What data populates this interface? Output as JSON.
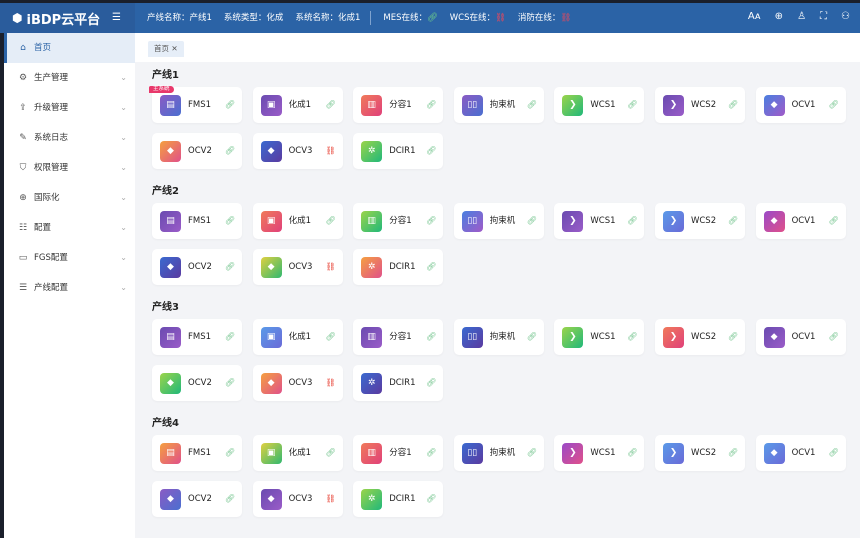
{
  "header": {
    "logo": "iBDP云平台",
    "line_name": "产线名称：产线1",
    "sys_type": "系统类型：化成",
    "sys_name": "系统名称：化成1",
    "mes": "MES在线：",
    "wcs": "WCS在线：",
    "fire": "消防在线：",
    "mes_ok": true,
    "wcs_ok": false,
    "fire_ok": false
  },
  "sidebar": {
    "items": [
      {
        "label": "首页",
        "icon": "home-icon",
        "active": true
      },
      {
        "label": "生产管理",
        "icon": "production-icon"
      },
      {
        "label": "升级管理",
        "icon": "upgrade-icon"
      },
      {
        "label": "系统日志",
        "icon": "log-icon"
      },
      {
        "label": "权限管理",
        "icon": "shield-icon"
      },
      {
        "label": "国际化",
        "icon": "globe-icon"
      },
      {
        "label": "配置",
        "icon": "config-icon"
      },
      {
        "label": "FGS配置",
        "icon": "monitor-icon"
      },
      {
        "label": "产线配置",
        "icon": "list-icon"
      }
    ]
  },
  "tabs": [
    {
      "label": "首页"
    }
  ],
  "main_badge": "主系统",
  "colors": {
    "accent": "#2b63a6",
    "online": "#6fc28a",
    "offline": "#e8463a"
  },
  "lines": [
    {
      "title": "产线1",
      "cards": [
        [
          "FMS1",
          "pb",
          1
        ],
        [
          "化成1",
          "pu",
          1
        ],
        [
          "分容1",
          "pr",
          1
        ],
        [
          "拘束机",
          "pb",
          1
        ],
        [
          "WCS1",
          "gr",
          1
        ],
        [
          "WCS2",
          "pu",
          1
        ],
        [
          "OCV1",
          "bp",
          1
        ],
        [
          "OCV2",
          "op",
          1
        ],
        [
          "OCV3",
          "bi",
          0
        ],
        [
          "DCIR1",
          "gr",
          1
        ]
      ]
    },
    {
      "title": "产线2",
      "cards": [
        [
          "FMS1",
          "pu",
          1
        ],
        [
          "化成1",
          "pr",
          1
        ],
        [
          "分容1",
          "gr",
          1
        ],
        [
          "拘束机",
          "bp",
          1
        ],
        [
          "WCS1",
          "pu",
          1
        ],
        [
          "WCS2",
          "bl",
          1
        ],
        [
          "OCV1",
          "pp",
          1
        ],
        [
          "OCV2",
          "bi",
          1
        ],
        [
          "OCV3",
          "gy",
          0
        ],
        [
          "DCIR1",
          "op",
          1
        ]
      ]
    },
    {
      "title": "产线3",
      "cards": [
        [
          "FMS1",
          "pu",
          1
        ],
        [
          "化成1",
          "bl",
          1
        ],
        [
          "分容1",
          "pu",
          1
        ],
        [
          "拘束机",
          "bi",
          1
        ],
        [
          "WCS1",
          "gr",
          1
        ],
        [
          "WCS2",
          "pr",
          1
        ],
        [
          "OCV1",
          "pu",
          1
        ],
        [
          "OCV2",
          "gr",
          1
        ],
        [
          "OCV3",
          "op",
          0
        ],
        [
          "DCIR1",
          "bi",
          1
        ]
      ]
    },
    {
      "title": "产线4",
      "cards": [
        [
          "FMS1",
          "op",
          1
        ],
        [
          "化成1",
          "gy",
          1
        ],
        [
          "分容1",
          "pr",
          1
        ],
        [
          "拘束机",
          "bi",
          1
        ],
        [
          "WCS1",
          "pp",
          1
        ],
        [
          "WCS2",
          "bl",
          1
        ],
        [
          "OCV1",
          "bl",
          1
        ],
        [
          "OCV2",
          "pb",
          1
        ],
        [
          "OCV3",
          "pu",
          0
        ],
        [
          "DCIR1",
          "gr",
          1
        ]
      ]
    }
  ]
}
